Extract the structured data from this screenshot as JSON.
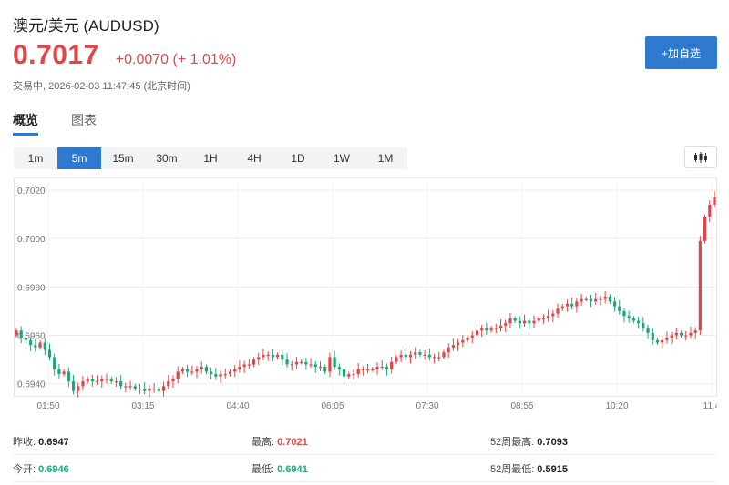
{
  "header": {
    "title": "澳元/美元  (AUDUSD)",
    "price": "0.7017",
    "change": "+0.0070 (+ 1.01%)",
    "status": "交易中, 2026-02-03 11:47:45 (北京时间)",
    "add_button": "+加自选"
  },
  "tabs": [
    {
      "label": "概览",
      "active": true
    },
    {
      "label": "图表",
      "active": false
    }
  ],
  "timeframes": [
    {
      "label": "1m"
    },
    {
      "label": "5m",
      "active": true
    },
    {
      "label": "15m"
    },
    {
      "label": "30m"
    },
    {
      "label": "1H"
    },
    {
      "label": "4H"
    },
    {
      "label": "1D"
    },
    {
      "label": "1W"
    },
    {
      "label": "1M"
    }
  ],
  "chart_type_icon": "candlestick-icon",
  "colors": {
    "up": "#e64545",
    "down": "#1aa97a",
    "accent": "#2f79d0"
  },
  "chart_data": {
    "type": "candlestick",
    "ylim": [
      0.6935,
      0.7023
    ],
    "yticks": [
      "0.7020",
      "0.7000",
      "0.6980",
      "0.6960",
      "0.6940"
    ],
    "xticks": [
      "01:50",
      "03:15",
      "04:40",
      "06:05",
      "07:30",
      "08:55",
      "10:20",
      "11:4"
    ],
    "grid": true,
    "closes": [
      0.6962,
      0.6959,
      0.6958,
      0.6956,
      0.6955,
      0.6957,
      0.6954,
      0.6951,
      0.6946,
      0.6944,
      0.6945,
      0.6941,
      0.6937,
      0.6939,
      0.6941,
      0.6942,
      0.6941,
      0.6941,
      0.6942,
      0.6942,
      0.6941,
      0.6941,
      0.6939,
      0.6939,
      0.6939,
      0.6938,
      0.6938,
      0.6937,
      0.6938,
      0.6938,
      0.6937,
      0.6939,
      0.6941,
      0.6942,
      0.6945,
      0.6946,
      0.6945,
      0.6945,
      0.6946,
      0.6947,
      0.6945,
      0.6944,
      0.6943,
      0.6944,
      0.6944,
      0.6945,
      0.6946,
      0.6947,
      0.6948,
      0.6948,
      0.695,
      0.6951,
      0.6952,
      0.6952,
      0.6951,
      0.6952,
      0.695,
      0.6948,
      0.6948,
      0.6949,
      0.6949,
      0.6948,
      0.6948,
      0.6947,
      0.6947,
      0.6945,
      0.6951,
      0.6947,
      0.6946,
      0.6943,
      0.6944,
      0.6944,
      0.6946,
      0.6946,
      0.6946,
      0.6946,
      0.6947,
      0.6947,
      0.6946,
      0.6949,
      0.6951,
      0.6952,
      0.6951,
      0.6952,
      0.6953,
      0.6952,
      0.6952,
      0.6951,
      0.6951,
      0.6951,
      0.6953,
      0.6955,
      0.6956,
      0.6957,
      0.6958,
      0.6959,
      0.696,
      0.6962,
      0.6963,
      0.6962,
      0.6963,
      0.6963,
      0.6964,
      0.6965,
      0.6967,
      0.6966,
      0.6965,
      0.6966,
      0.6965,
      0.6966,
      0.6967,
      0.6967,
      0.6968,
      0.6969,
      0.6971,
      0.6972,
      0.6973,
      0.6972,
      0.6974,
      0.6975,
      0.6975,
      0.6974,
      0.6975,
      0.6975,
      0.6976,
      0.6974,
      0.6972,
      0.697,
      0.6968,
      0.6967,
      0.6966,
      0.6965,
      0.6963,
      0.6961,
      0.6958,
      0.6957,
      0.6958,
      0.6959,
      0.696,
      0.6961,
      0.696,
      0.696,
      0.6961,
      0.6962,
      0.6999,
      0.7009,
      0.7014,
      0.7017
    ]
  },
  "stats": [
    [
      {
        "label": "昨收:",
        "value": "0.6947",
        "color": "dark"
      },
      {
        "label": "最高:",
        "value": "0.7021",
        "color": "red"
      },
      {
        "label": "52周最高:",
        "value": "0.7093",
        "color": "dark"
      }
    ],
    [
      {
        "label": "今开:",
        "value": "0.6946",
        "color": "green"
      },
      {
        "label": "最低:",
        "value": "0.6941",
        "color": "green"
      },
      {
        "label": "52周最低:",
        "value": "0.5915",
        "color": "dark"
      }
    ]
  ]
}
